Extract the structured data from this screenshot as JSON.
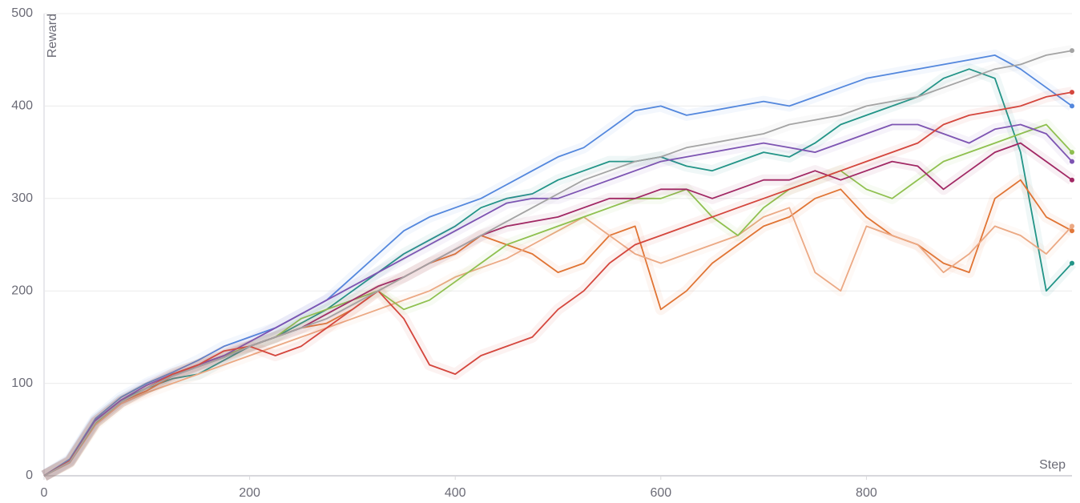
{
  "chart_data": {
    "type": "line",
    "y_label": "Reward",
    "x_label": "Step",
    "xlim": [
      0,
      1000
    ],
    "ylim": [
      0,
      500
    ],
    "xticks": [
      0,
      200,
      400,
      600,
      800
    ],
    "yticks": [
      0,
      100,
      200,
      300,
      400,
      500
    ],
    "grid": true,
    "x": [
      0,
      25,
      50,
      75,
      100,
      125,
      150,
      175,
      200,
      225,
      250,
      275,
      300,
      325,
      350,
      375,
      400,
      425,
      450,
      475,
      500,
      525,
      550,
      575,
      600,
      625,
      650,
      675,
      700,
      725,
      750,
      775,
      800,
      825,
      850,
      875,
      900,
      925,
      950,
      975,
      1000
    ],
    "series": [
      {
        "color": "#5387dd",
        "values": [
          0,
          18,
          62,
          85,
          100,
          112,
          125,
          140,
          150,
          160,
          175,
          190,
          215,
          240,
          265,
          280,
          290,
          300,
          315,
          330,
          345,
          355,
          375,
          395,
          400,
          390,
          395,
          400,
          405,
          400,
          410,
          420,
          430,
          435,
          440,
          445,
          450,
          455,
          440,
          420,
          400
        ]
      },
      {
        "color": "#229487",
        "values": [
          0,
          16,
          60,
          82,
          95,
          105,
          110,
          125,
          140,
          150,
          165,
          180,
          200,
          220,
          240,
          255,
          270,
          290,
          300,
          305,
          320,
          330,
          340,
          340,
          345,
          335,
          330,
          340,
          350,
          345,
          360,
          380,
          390,
          400,
          410,
          430,
          440,
          430,
          350,
          200,
          230
        ]
      },
      {
        "color": "#e07434",
        "values": [
          0,
          15,
          58,
          80,
          92,
          108,
          120,
          130,
          140,
          150,
          160,
          165,
          180,
          200,
          215,
          230,
          240,
          260,
          250,
          240,
          220,
          230,
          260,
          270,
          180,
          200,
          230,
          250,
          270,
          280,
          300,
          310,
          280,
          260,
          250,
          230,
          220,
          300,
          320,
          280,
          265
        ]
      },
      {
        "color": "#eba883",
        "values": [
          0,
          14,
          55,
          78,
          90,
          100,
          110,
          120,
          130,
          140,
          150,
          160,
          170,
          180,
          190,
          200,
          215,
          225,
          235,
          250,
          265,
          280,
          260,
          240,
          230,
          240,
          250,
          260,
          280,
          290,
          220,
          200,
          270,
          260,
          250,
          220,
          240,
          270,
          260,
          240,
          270
        ]
      },
      {
        "color": "#8fc04f",
        "values": [
          0,
          15,
          57,
          80,
          95,
          110,
          120,
          130,
          140,
          150,
          170,
          180,
          190,
          200,
          180,
          190,
          210,
          230,
          250,
          260,
          270,
          280,
          290,
          300,
          300,
          310,
          280,
          260,
          290,
          310,
          320,
          330,
          310,
          300,
          320,
          340,
          350,
          360,
          370,
          380,
          350
        ]
      },
      {
        "color": "#7d54b2",
        "values": [
          0,
          16,
          60,
          82,
          98,
          110,
          120,
          130,
          145,
          160,
          175,
          190,
          205,
          220,
          235,
          250,
          265,
          280,
          295,
          300,
          300,
          310,
          320,
          330,
          340,
          345,
          350,
          355,
          360,
          355,
          350,
          360,
          370,
          380,
          380,
          370,
          360,
          375,
          380,
          370,
          340
        ]
      },
      {
        "color": "#a12864",
        "values": [
          0,
          15,
          58,
          80,
          95,
          108,
          118,
          128,
          140,
          150,
          160,
          175,
          190,
          205,
          215,
          230,
          245,
          260,
          270,
          275,
          280,
          290,
          300,
          300,
          310,
          310,
          300,
          310,
          320,
          320,
          330,
          320,
          330,
          340,
          335,
          310,
          330,
          350,
          360,
          340,
          320
        ]
      },
      {
        "color": "#d4463d",
        "values": [
          0,
          16,
          58,
          80,
          95,
          110,
          120,
          135,
          140,
          130,
          140,
          160,
          180,
          200,
          170,
          120,
          110,
          130,
          140,
          150,
          180,
          200,
          230,
          250,
          260,
          270,
          280,
          290,
          300,
          310,
          320,
          330,
          340,
          350,
          360,
          380,
          390,
          395,
          400,
          410,
          415
        ]
      },
      {
        "color": "#a3a3a3",
        "values": [
          0,
          15,
          58,
          80,
          95,
          108,
          118,
          128,
          140,
          150,
          160,
          170,
          185,
          200,
          215,
          230,
          245,
          260,
          275,
          290,
          305,
          320,
          330,
          340,
          345,
          355,
          360,
          365,
          370,
          380,
          385,
          390,
          400,
          405,
          410,
          420,
          430,
          440,
          445,
          455,
          460
        ]
      }
    ]
  }
}
